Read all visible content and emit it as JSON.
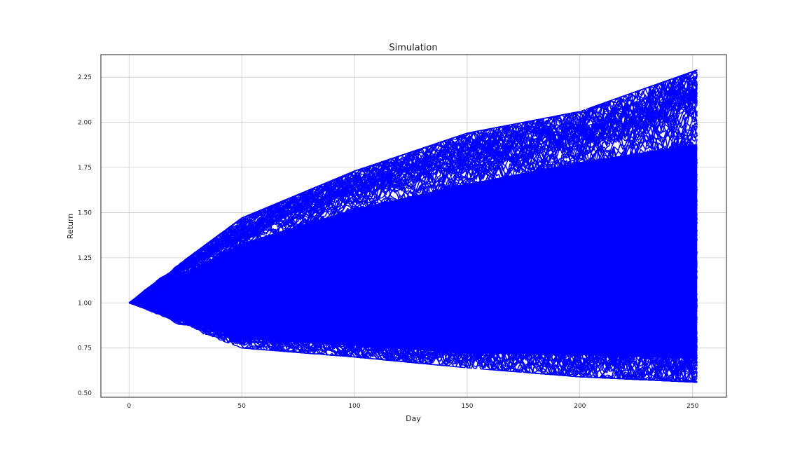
{
  "chart_data": {
    "type": "line",
    "title": "Simulation",
    "xlabel": "Day",
    "ylabel": "Return",
    "xlim": [
      -12.5,
      265
    ],
    "ylim": [
      0.477,
      2.375
    ],
    "xticks": [
      0,
      50,
      100,
      150,
      200,
      250
    ],
    "xtick_labels": [
      "0",
      "50",
      "100",
      "150",
      "200",
      "250"
    ],
    "yticks": [
      0.5,
      0.75,
      1.0,
      1.25,
      1.5,
      1.75,
      2.0,
      2.25
    ],
    "ytick_labels": [
      "0.50",
      "0.75",
      "1.00",
      "1.25",
      "1.50",
      "1.75",
      "2.00",
      "2.25"
    ],
    "grid": true,
    "legend": false,
    "line_color": "#0000ff",
    "num_days": 252,
    "start_value": 1.0,
    "envelope": {
      "x": [
        0,
        50,
        100,
        150,
        200,
        252
      ],
      "upper": [
        1.0,
        1.46,
        1.72,
        1.93,
        2.05,
        2.28
      ],
      "lower": [
        1.0,
        0.77,
        0.72,
        0.66,
        0.61,
        0.58
      ]
    },
    "dense_band": {
      "x": [
        0,
        50,
        100,
        150,
        200,
        252
      ],
      "upper": [
        1.0,
        1.33,
        1.52,
        1.66,
        1.78,
        1.88
      ],
      "lower": [
        1.0,
        0.8,
        0.76,
        0.72,
        0.71,
        0.69
      ]
    }
  }
}
